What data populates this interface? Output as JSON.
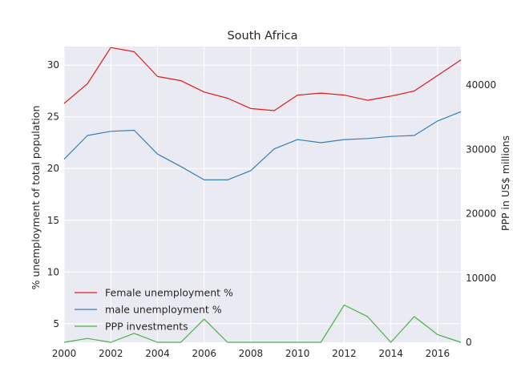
{
  "chart_data": {
    "type": "line",
    "title": "South Africa",
    "xlabel": "",
    "ylabel": "% unemployment of total population",
    "y2label": "PPP in US$ millions",
    "x": [
      2000,
      2001,
      2002,
      2003,
      2004,
      2005,
      2006,
      2007,
      2008,
      2009,
      2010,
      2011,
      2012,
      2013,
      2014,
      2015,
      2016,
      2017
    ],
    "xlim": [
      2000,
      2017
    ],
    "ylim": [
      3.2,
      31.8
    ],
    "y2lim": [
      0,
      46000
    ],
    "xticks": [
      "2000",
      "2002",
      "2004",
      "2006",
      "2008",
      "2010",
      "2012",
      "2014",
      "2016"
    ],
    "yticks": [
      "5",
      "10",
      "15",
      "20",
      "25",
      "30"
    ],
    "y2ticks": [
      "0",
      "10000",
      "20000",
      "30000",
      "40000"
    ],
    "grid": true,
    "legend_position": "lower-left",
    "series": [
      {
        "name": "Female unemployment %",
        "axis": "left",
        "color": "#e41a1c",
        "values": [
          26.3,
          28.2,
          31.7,
          31.3,
          28.9,
          28.5,
          27.4,
          26.8,
          25.8,
          25.6,
          27.1,
          27.3,
          27.1,
          26.6,
          27.0,
          27.5,
          29.0,
          30.5
        ]
      },
      {
        "name": "male unemployment %",
        "axis": "left",
        "color": "#377eb8",
        "values": [
          20.9,
          23.2,
          23.6,
          23.7,
          21.4,
          20.2,
          18.9,
          18.9,
          19.8,
          21.9,
          22.8,
          22.5,
          22.8,
          22.9,
          23.1,
          23.2,
          24.6,
          25.5
        ]
      },
      {
        "name": "PPP investments",
        "axis": "right",
        "color": "#4daf4a",
        "values": [
          0,
          600,
          0,
          1400,
          0,
          0,
          3600,
          0,
          0,
          0,
          0,
          0,
          5800,
          4000,
          0,
          4000,
          1200,
          0
        ]
      }
    ]
  }
}
